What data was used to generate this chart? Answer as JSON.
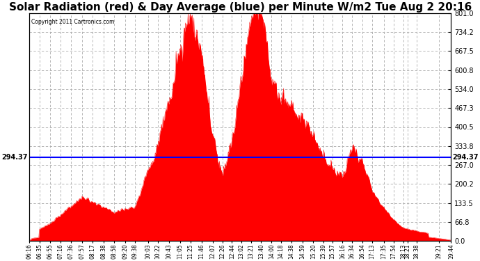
{
  "title": "Solar Radiation (red) & Day Average (blue) per Minute W/m2 Tue Aug 2 20:16",
  "copyright": "Copyright 2011 Cartronics.com",
  "y_max": 801.0,
  "y_min": 0.0,
  "y_ticks": [
    0.0,
    66.8,
    133.5,
    200.2,
    267.0,
    333.8,
    400.5,
    467.3,
    534.0,
    600.8,
    667.5,
    734.2,
    801.0
  ],
  "avg_line_y": 294.37,
  "avg_label": "294.37",
  "bar_color": "#FF0000",
  "line_color": "#0000FF",
  "grid_color": "#AAAAAA",
  "background_color": "#FFFFFF",
  "title_fontsize": 11,
  "x_tick_labels": [
    "06:16",
    "06:35",
    "06:55",
    "07:16",
    "07:36",
    "07:57",
    "08:17",
    "08:38",
    "08:58",
    "09:20",
    "09:38",
    "10:03",
    "10:22",
    "10:43",
    "11:05",
    "11:25",
    "11:46",
    "12:07",
    "12:26",
    "12:44",
    "13:02",
    "13:21",
    "13:40",
    "14:00",
    "14:18",
    "14:38",
    "14:59",
    "15:20",
    "15:39",
    "15:57",
    "16:16",
    "16:34",
    "16:54",
    "17:13",
    "17:35",
    "17:54",
    "18:13",
    "18:21",
    "18:38",
    "19:21",
    "19:44"
  ]
}
